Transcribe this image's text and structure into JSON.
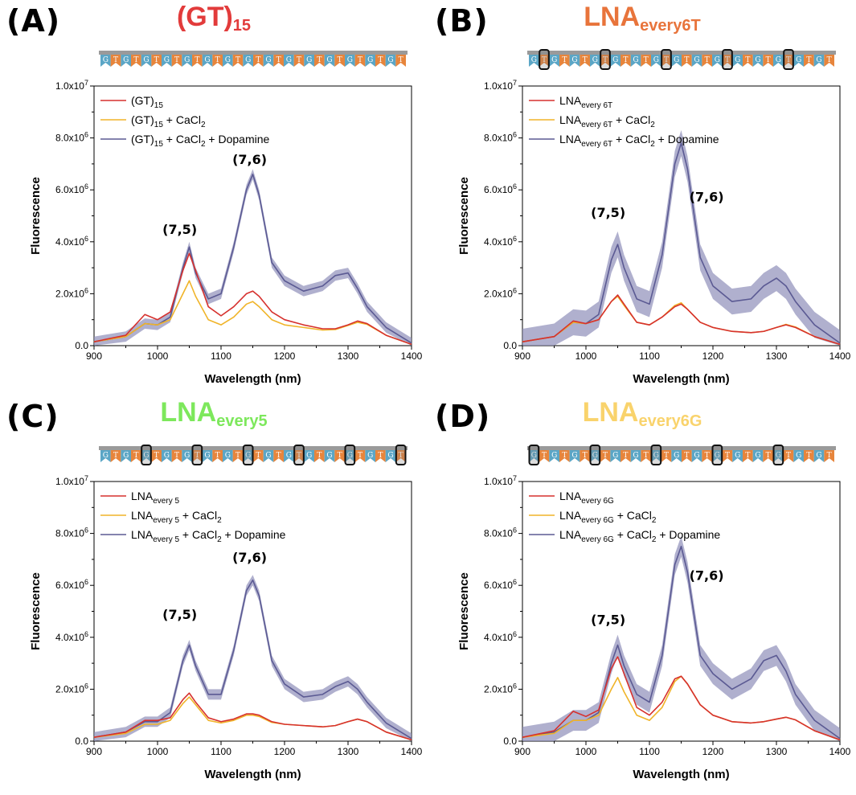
{
  "colors": {
    "red": "#d6312e",
    "yellow": "#f0b429",
    "purple": "#5b5a93",
    "band": "#8f8eb9",
    "strand_blue": "#5ba6c6",
    "strand_orange": "#e7853c",
    "strand_backbone": "#9a9a9a"
  },
  "panels": [
    {
      "letter": "(A)",
      "title": {
        "main": "(GT)",
        "sub": "15",
        "color": "#e23b3b"
      },
      "strand": {
        "count": 30,
        "first": "G",
        "boxed": []
      },
      "legend": [
        {
          "main": "(GT)",
          "sub": "15",
          "rest": "",
          "sub2": "",
          "rest2": ""
        },
        {
          "main": "(GT)",
          "sub": "15",
          "rest": " + CaCl",
          "sub2": "2",
          "rest2": ""
        },
        {
          "main": "(GT)",
          "sub": "15",
          "rest": " + CaCl",
          "sub2": "2",
          "rest2": " + Dopamine"
        }
      ],
      "peak_labels": [
        "(7,5)",
        "(7,6)"
      ],
      "chart_data": {
        "type": "line",
        "xlabel": "Wavelength (nm)",
        "ylabel": "Fluorescence",
        "xlim": [
          900,
          1400
        ],
        "ylim": [
          0,
          10000000
        ],
        "xticks": [
          "900",
          "1000",
          "1100",
          "1200",
          "1300",
          "1400"
        ],
        "yticks": [
          "0.0",
          "2.0x10^6",
          "4.0x10^6",
          "6.0x10^6",
          "8.0x10^6",
          "1.0x10^7"
        ],
        "x": [
          900,
          950,
          980,
          1000,
          1020,
          1040,
          1050,
          1060,
          1080,
          1100,
          1120,
          1140,
          1150,
          1160,
          1180,
          1200,
          1230,
          1260,
          1280,
          1300,
          1315,
          1330,
          1360,
          1400
        ],
        "series": [
          {
            "values": [
              150000,
              400000,
              1200000,
              1000000,
              1300000,
              2900000,
              3550000,
              2900000,
              1500000,
              1150000,
              1500000,
              2000000,
              2100000,
              1900000,
              1300000,
              1000000,
              800000,
              650000,
              650000,
              800000,
              950000,
              850000,
              400000,
              50000
            ],
            "band": 0
          },
          {
            "values": [
              150000,
              350000,
              850000,
              800000,
              1000000,
              2000000,
              2500000,
              1900000,
              1000000,
              800000,
              1100000,
              1600000,
              1700000,
              1500000,
              1000000,
              800000,
              700000,
              600000,
              620000,
              780000,
              900000,
              820000,
              400000,
              50000
            ],
            "band": 0
          },
          {
            "values": [
              150000,
              350000,
              850000,
              800000,
              1100000,
              3000000,
              3800000,
              2800000,
              1800000,
              2000000,
              3800000,
              6000000,
              6600000,
              5800000,
              3200000,
              2500000,
              2100000,
              2300000,
              2700000,
              2800000,
              2200000,
              1500000,
              700000,
              100000
            ],
            "band": 200000
          }
        ],
        "annotations": [
          {
            "text": "(7,5)",
            "x": 1035,
            "y": 4300000
          },
          {
            "text": "(7,6)",
            "x": 1145,
            "y": 7000000
          }
        ]
      }
    },
    {
      "letter": "(B)",
      "title": {
        "main": "LNA",
        "sub": "every6T",
        "color": "#e8743b"
      },
      "strand": {
        "count": 30,
        "first": "G",
        "boxed": [
          1,
          7,
          13,
          19,
          25
        ]
      },
      "legend": [
        {
          "main": "LNA",
          "sub": "every 6T",
          "rest": "",
          "sub2": "",
          "rest2": ""
        },
        {
          "main": "LNA",
          "sub": "every 6T",
          "rest": " + CaCl",
          "sub2": "2",
          "rest2": ""
        },
        {
          "main": "LNA",
          "sub": "every 6T",
          "rest": " + CaCl",
          "sub2": "2",
          "rest2": " + Dopamine"
        }
      ],
      "peak_labels": [
        "(7,5)",
        "(7,6)"
      ],
      "chart_data": {
        "type": "line",
        "xlabel": "Wavelength (nm)",
        "ylabel": "Fluorescence",
        "xlim": [
          900,
          1400
        ],
        "ylim": [
          0,
          10000000
        ],
        "xticks": [
          "900",
          "1000",
          "1100",
          "1200",
          "1300",
          "1400"
        ],
        "yticks": [
          "0.0",
          "2.0x10^6",
          "4.0x10^6",
          "6.0x10^6",
          "8.0x10^6",
          "1.0x10^7"
        ],
        "x": [
          900,
          950,
          980,
          1000,
          1020,
          1040,
          1050,
          1060,
          1080,
          1100,
          1120,
          1140,
          1150,
          1160,
          1180,
          1200,
          1230,
          1260,
          1280,
          1300,
          1315,
          1330,
          1360,
          1400
        ],
        "series": [
          {
            "values": [
              150000,
              350000,
              950000,
              850000,
              1000000,
              1700000,
              1950000,
              1600000,
              900000,
              800000,
              1100000,
              1500000,
              1600000,
              1400000,
              900000,
              700000,
              550000,
              500000,
              550000,
              700000,
              800000,
              700000,
              350000,
              50000
            ],
            "band": 0
          },
          {
            "values": [
              150000,
              350000,
              900000,
              850000,
              1000000,
              1700000,
              1900000,
              1550000,
              900000,
              800000,
              1100000,
              1550000,
              1650000,
              1400000,
              900000,
              700000,
              550000,
              500000,
              550000,
              700000,
              820000,
              720000,
              350000,
              50000
            ],
            "band": 0
          },
          {
            "values": [
              150000,
              350000,
              900000,
              850000,
              1200000,
              3300000,
              3900000,
              3000000,
              1800000,
              1600000,
              3500000,
              7000000,
              7800000,
              6800000,
              3400000,
              2300000,
              1700000,
              1800000,
              2300000,
              2600000,
              2300000,
              1700000,
              800000,
              100000
            ],
            "band": 500000
          }
        ],
        "annotations": [
          {
            "text": "(7,5)",
            "x": 1035,
            "y": 4950000
          },
          {
            "text": "(7,6)",
            "x": 1190,
            "y": 5550000
          }
        ]
      }
    },
    {
      "letter": "(C)",
      "title": {
        "main": "LNA",
        "sub": "every5",
        "color": "#7de85c"
      },
      "strand": {
        "count": 30,
        "first": "G",
        "boxed": [
          4,
          9,
          14,
          19,
          24,
          29
        ]
      },
      "legend": [
        {
          "main": "LNA",
          "sub": "every 5",
          "rest": "",
          "sub2": "",
          "rest2": ""
        },
        {
          "main": "LNA",
          "sub": "every 5",
          "rest": " + CaCl",
          "sub2": "2",
          "rest2": ""
        },
        {
          "main": "LNA",
          "sub": "every 5",
          "rest": " + CaCl",
          "sub2": "2",
          "rest2": " + Dopamine"
        }
      ],
      "peak_labels": [
        "(7,5)",
        "(7,6)"
      ],
      "chart_data": {
        "type": "line",
        "xlabel": "Wavelength (nm)",
        "ylabel": "Fluorescence",
        "xlim": [
          900,
          1400
        ],
        "ylim": [
          0,
          10000000
        ],
        "xticks": [
          "900",
          "1000",
          "1100",
          "1200",
          "1300",
          "1400"
        ],
        "yticks": [
          "0.0",
          "2.0x10^6",
          "4.0x10^6",
          "6.0x10^6",
          "8.0x10^6",
          "1.0x10^7"
        ],
        "x": [
          900,
          950,
          980,
          1000,
          1020,
          1040,
          1050,
          1060,
          1080,
          1100,
          1120,
          1140,
          1150,
          1160,
          1180,
          1200,
          1230,
          1260,
          1280,
          1300,
          1315,
          1330,
          1360,
          1400
        ],
        "series": [
          {
            "values": [
              150000,
              350000,
              800000,
              800000,
              900000,
              1600000,
              1850000,
              1500000,
              900000,
              750000,
              850000,
              1050000,
              1050000,
              1000000,
              750000,
              650000,
              600000,
              550000,
              600000,
              750000,
              850000,
              750000,
              350000,
              50000
            ],
            "band": 0
          },
          {
            "values": [
              150000,
              300000,
              650000,
              650000,
              800000,
              1450000,
              1700000,
              1400000,
              800000,
              700000,
              800000,
              1000000,
              1000000,
              950000,
              720000,
              650000,
              600000,
              550000,
              600000,
              750000,
              850000,
              750000,
              350000,
              50000
            ],
            "band": 0
          },
          {
            "values": [
              150000,
              350000,
              750000,
              750000,
              1100000,
              3100000,
              3700000,
              2900000,
              1800000,
              1800000,
              3500000,
              5800000,
              6200000,
              5600000,
              3100000,
              2200000,
              1700000,
              1800000,
              2100000,
              2300000,
              2000000,
              1500000,
              700000,
              100000
            ],
            "band": 200000
          }
        ],
        "annotations": [
          {
            "text": "(7,5)",
            "x": 1035,
            "y": 4700000
          },
          {
            "text": "(7,6)",
            "x": 1145,
            "y": 6900000
          }
        ]
      }
    },
    {
      "letter": "(D)",
      "title": {
        "main": "LNA",
        "sub": "every6G",
        "color": "#f9d36c"
      },
      "strand": {
        "count": 30,
        "first": "G",
        "boxed": [
          0,
          6,
          12,
          18,
          24
        ]
      },
      "legend": [
        {
          "main": "LNA",
          "sub": "every 6G",
          "rest": "",
          "sub2": "",
          "rest2": ""
        },
        {
          "main": "LNA",
          "sub": "every 6G",
          "rest": " + CaCl",
          "sub2": "2",
          "rest2": ""
        },
        {
          "main": "LNA",
          "sub": "every 6G",
          "rest": " + CaCl",
          "sub2": "2",
          "rest2": " + Dopamine"
        }
      ],
      "peak_labels": [
        "(7,5)",
        "(7,6)"
      ],
      "chart_data": {
        "type": "line",
        "xlabel": "Wavelength (nm)",
        "ylabel": "Fluorescence",
        "xlim": [
          900,
          1400
        ],
        "ylim": [
          0,
          10000000
        ],
        "xticks": [
          "900",
          "1000",
          "1100",
          "1200",
          "1300",
          "1400"
        ],
        "yticks": [
          "0.0",
          "2.0x10^6",
          "4.0x10^6",
          "6.0x10^6",
          "8.0x10^6",
          "1.0x10^7"
        ],
        "x": [
          900,
          950,
          980,
          1000,
          1020,
          1040,
          1050,
          1060,
          1080,
          1100,
          1120,
          1140,
          1150,
          1160,
          1180,
          1200,
          1230,
          1260,
          1280,
          1300,
          1315,
          1330,
          1360,
          1400
        ],
        "series": [
          {
            "values": [
              150000,
              400000,
              1150000,
              950000,
              1200000,
              2800000,
              3250000,
              2600000,
              1300000,
              1000000,
              1500000,
              2400000,
              2500000,
              2200000,
              1400000,
              1000000,
              750000,
              700000,
              750000,
              850000,
              920000,
              820000,
              400000,
              50000
            ],
            "band": 0
          },
          {
            "values": [
              150000,
              300000,
              800000,
              800000,
              1000000,
              2000000,
              2450000,
              1900000,
              1000000,
              800000,
              1300000,
              2300000,
              2500000,
              2200000,
              1400000,
              1000000,
              750000,
              700000,
              750000,
              850000,
              920000,
              820000,
              400000,
              50000
            ],
            "band": 0
          },
          {
            "values": [
              150000,
              350000,
              800000,
              800000,
              1100000,
              3000000,
              3700000,
              2900000,
              1800000,
              1500000,
              3300000,
              6800000,
              7500000,
              6500000,
              3300000,
              2600000,
              2000000,
              2400000,
              3100000,
              3300000,
              2700000,
              1800000,
              800000,
              100000
            ],
            "band": 400000
          }
        ],
        "annotations": [
          {
            "text": "(7,5)",
            "x": 1035,
            "y": 4500000
          },
          {
            "text": "(7,6)",
            "x": 1190,
            "y": 6200000
          }
        ]
      }
    }
  ]
}
